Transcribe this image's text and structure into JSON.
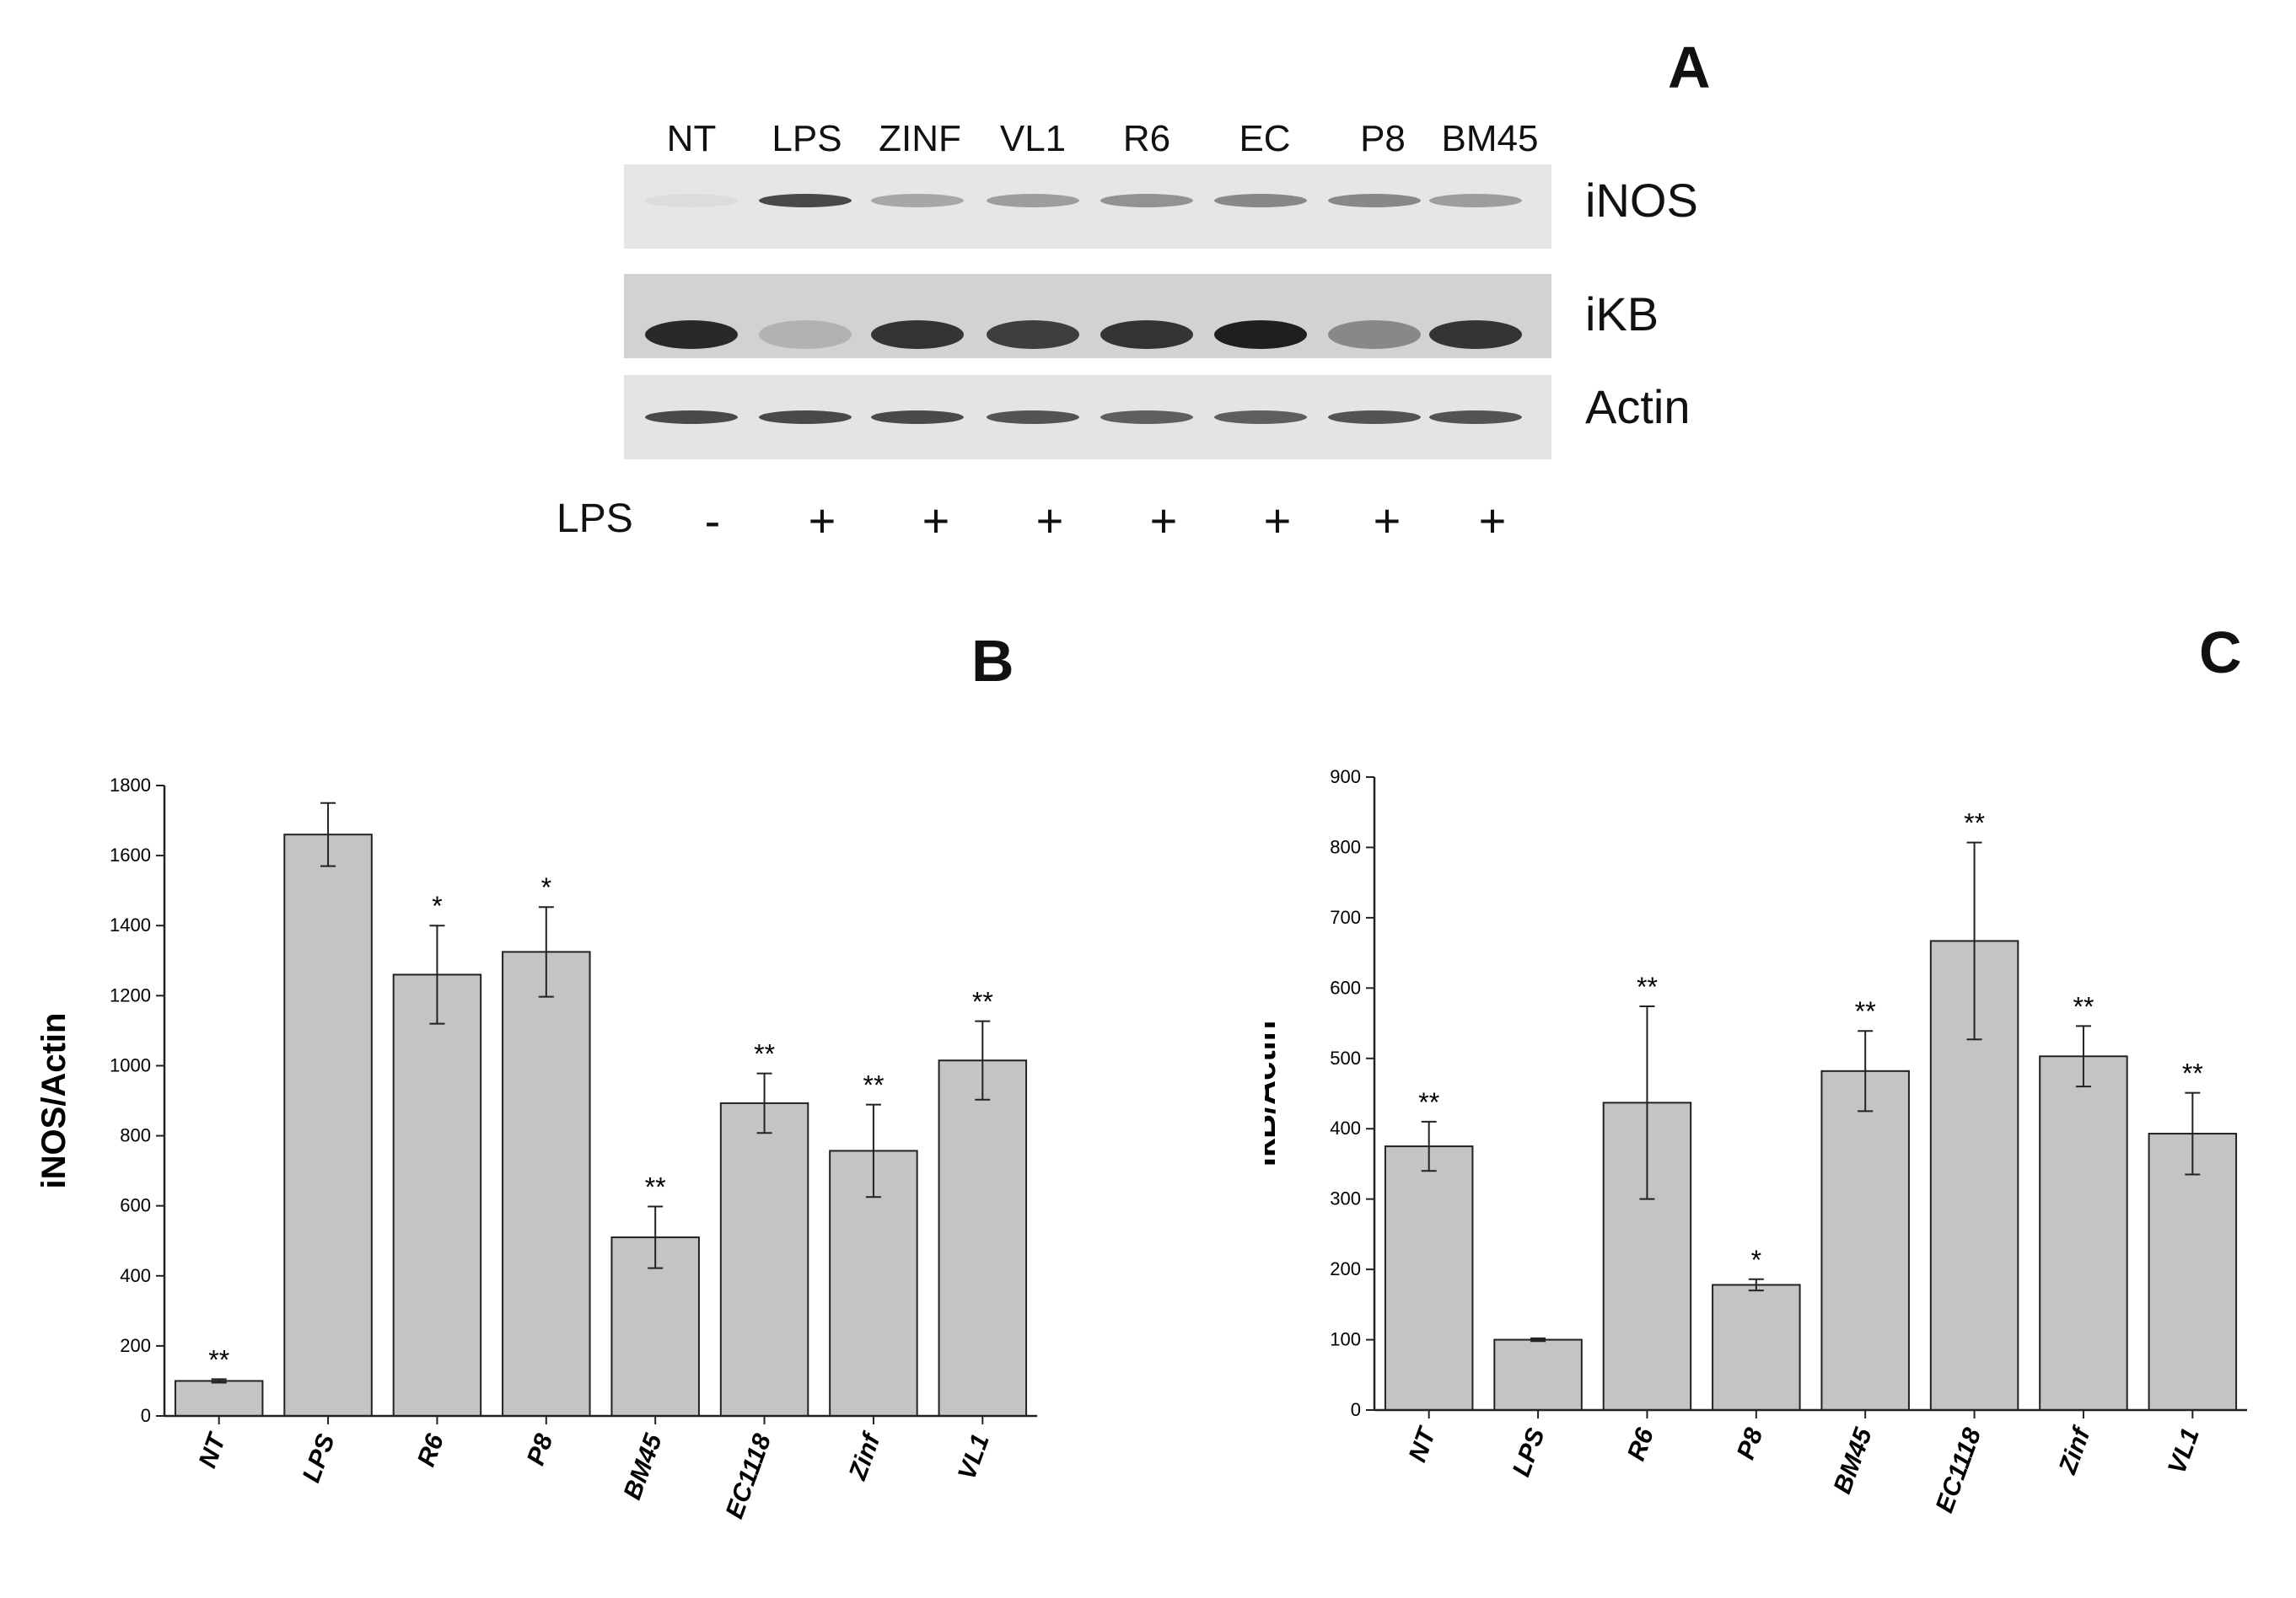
{
  "panel_a": {
    "letter": "A",
    "lanes": [
      "NT",
      "LPS",
      "ZINF",
      "VL1",
      "R6",
      "EC",
      "P8",
      "BM45"
    ],
    "bands": [
      "iNOS",
      "iKB",
      "Actin"
    ],
    "lps_label": "LPS",
    "lps_signs": [
      "-",
      "+",
      "+",
      "+",
      "+",
      "+",
      "+",
      "+"
    ],
    "band_intensity": {
      "iNOS": [
        0.05,
        0.75,
        0.3,
        0.35,
        0.4,
        0.45,
        0.45,
        0.35
      ],
      "iKB": [
        0.9,
        0.25,
        0.85,
        0.8,
        0.85,
        0.95,
        0.45,
        0.85
      ],
      "Actin": [
        0.75,
        0.75,
        0.75,
        0.7,
        0.65,
        0.65,
        0.7,
        0.7
      ]
    }
  },
  "chart_data": [
    {
      "type": "bar",
      "panel_letter": "B",
      "categories": [
        "NT",
        "LPS",
        "R6",
        "P8",
        "BM45",
        "EC1118",
        "Zinf",
        "VL1"
      ],
      "values": [
        100,
        1660,
        1260,
        1325,
        510,
        893,
        757,
        1015
      ],
      "errors": [
        5,
        90,
        140,
        128,
        88,
        85,
        132,
        112
      ],
      "significance": [
        "**",
        "",
        "*",
        "*",
        "**",
        "**",
        "**",
        "**"
      ],
      "xlabel": "",
      "ylabel": "iNOS/Actin",
      "ylim": [
        0,
        1800
      ],
      "yticks": [
        0,
        200,
        400,
        600,
        800,
        1000,
        1200,
        1400,
        1600,
        1800
      ],
      "bar_color": "#c4c4c4",
      "grid": false
    },
    {
      "type": "bar",
      "panel_letter": "C",
      "categories": [
        "NT",
        "LPS",
        "R6",
        "P8",
        "BM45",
        "EC1118",
        "Zinf",
        "VL1"
      ],
      "values": [
        375,
        100,
        437,
        178,
        482,
        667,
        503,
        393
      ],
      "errors": [
        35,
        2,
        137,
        8,
        57,
        140,
        43,
        58
      ],
      "significance": [
        "**",
        "",
        "**",
        "*",
        "**",
        "**",
        "**",
        "**"
      ],
      "xlabel": "",
      "ylabel": "IkB/Actin",
      "ylim": [
        0,
        900
      ],
      "yticks": [
        0,
        100,
        200,
        300,
        400,
        500,
        600,
        700,
        800,
        900
      ],
      "bar_color": "#c4c4c4",
      "grid": false
    }
  ]
}
